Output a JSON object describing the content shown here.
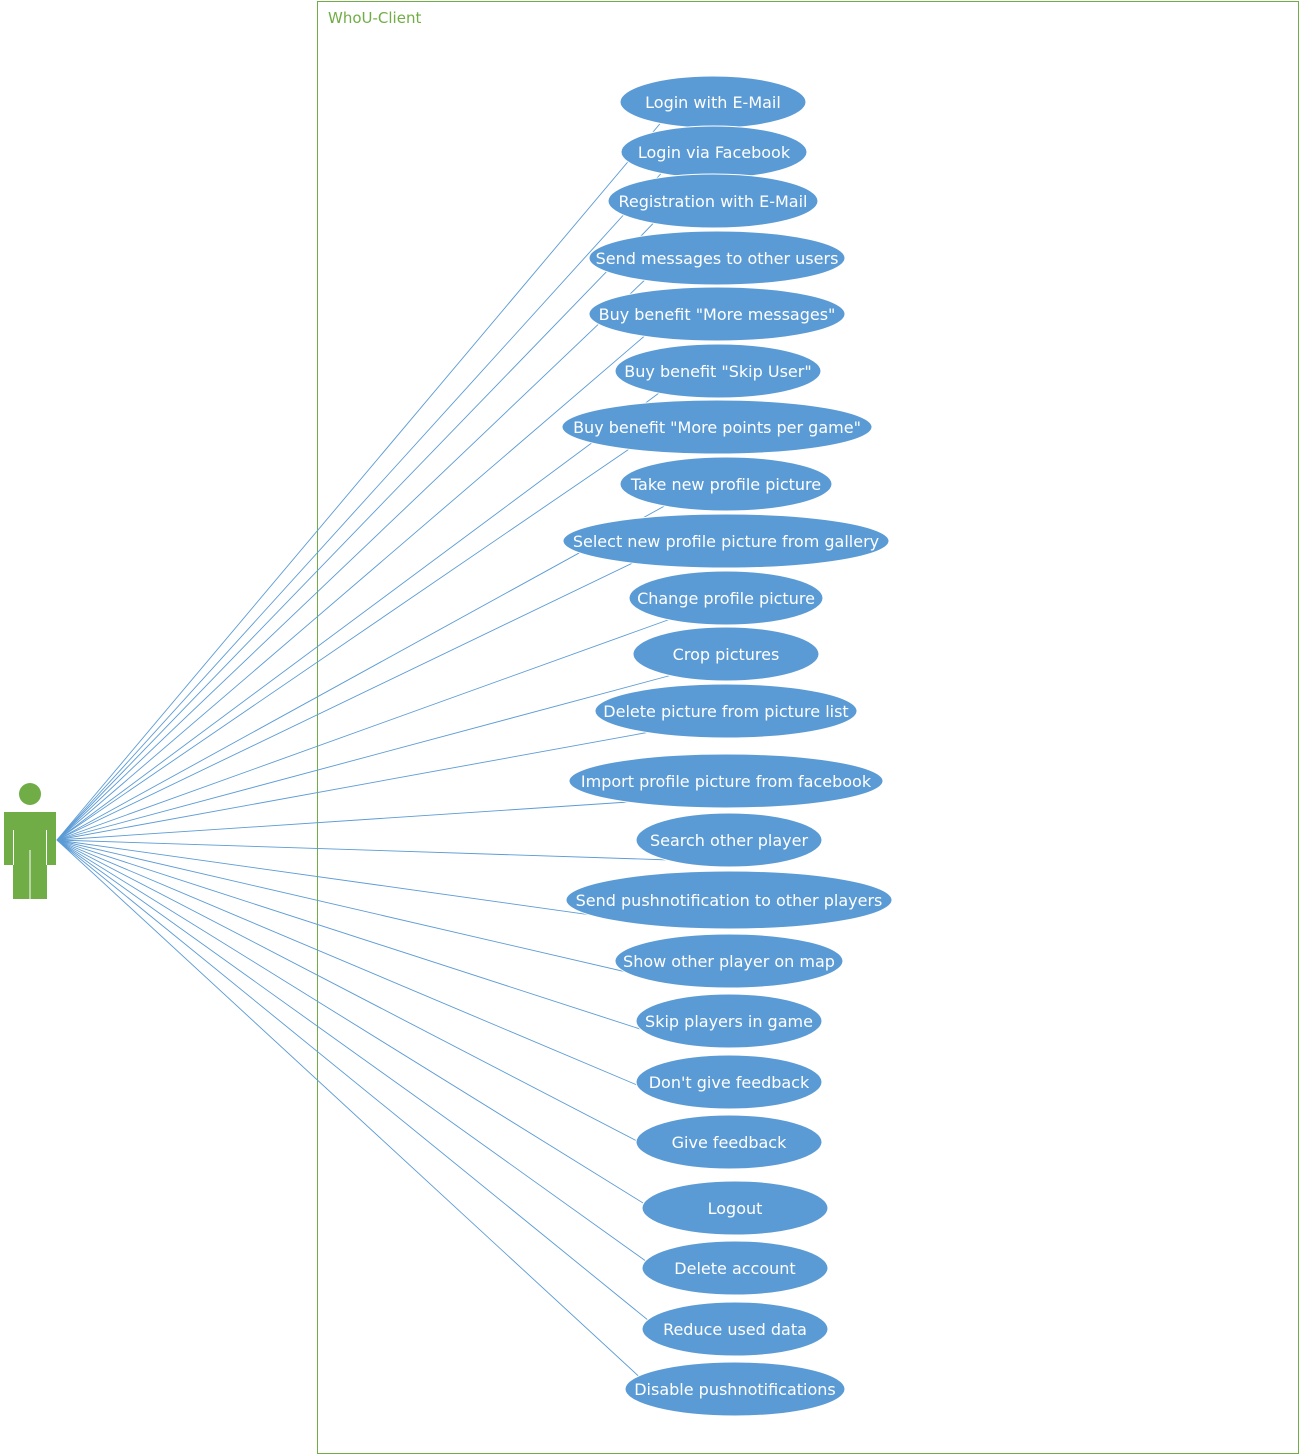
{
  "system": {
    "title": "WhoU-Client",
    "border_color": "#70ad47"
  },
  "actor": {
    "icon": "person-icon",
    "color": "#70ad47"
  },
  "colors": {
    "usecase_fill": "#5b9bd5",
    "usecase_text": "#ffffff",
    "connector": "#5b9bd5"
  },
  "use_cases": [
    {
      "label": "Login with E-Mail"
    },
    {
      "label": "Login via Facebook"
    },
    {
      "label": "Registration with E-Mail"
    },
    {
      "label": "Send messages to other users"
    },
    {
      "label": "Buy benefit \"More messages\""
    },
    {
      "label": "Buy benefit \"Skip User\""
    },
    {
      "label": "Buy benefit \"More points per game\""
    },
    {
      "label": "Take new profile picture"
    },
    {
      "label": "Select new profile picture from gallery"
    },
    {
      "label": "Change profile picture"
    },
    {
      "label": "Crop pictures"
    },
    {
      "label": "Delete picture from picture list"
    },
    {
      "label": "Import profile picture from facebook"
    },
    {
      "label": "Search other player"
    },
    {
      "label": "Send pushnotification to other players"
    },
    {
      "label": "Show other player on map"
    },
    {
      "label": "Skip players in game"
    },
    {
      "label": "Don't give feedback"
    },
    {
      "label": "Give feedback"
    },
    {
      "label": "Logout"
    },
    {
      "label": "Delete account"
    },
    {
      "label": "Reduce used data"
    },
    {
      "label": "Disable pushnotifications"
    }
  ]
}
